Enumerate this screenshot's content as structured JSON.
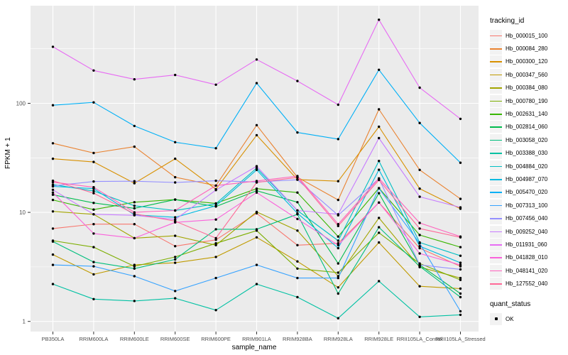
{
  "figure": {
    "background": "#FFFFFF",
    "panel_bg": "#EBEBEB",
    "grid_color": "#FFFFFF",
    "tick_color": "#333333",
    "tick_label_color": "#4D4D4D",
    "point_color": "#000000"
  },
  "axes": {
    "x_title": "sample_name",
    "y_title": "FPKM + 1",
    "y_scale": "log10",
    "y_tick_labels": [
      "1",
      "10",
      "100"
    ]
  },
  "legend": {
    "color_title": "tracking_id",
    "shape_title": "quant_status",
    "shape_items": [
      {
        "label": "OK"
      }
    ]
  },
  "chart_data": {
    "type": "line",
    "title": "",
    "xlabel": "sample_name",
    "ylabel": "FPKM + 1",
    "y_scale": "log10",
    "ylim": [
      1,
      900
    ],
    "y_major_ticks": [
      1,
      10,
      100
    ],
    "y_minor_ticks": [
      3.162,
      31.62,
      316.2
    ],
    "grid": "white-on-grey",
    "legend_position": "right",
    "categories": [
      "PB350LA",
      "RRIM600LA",
      "RRIM600LE",
      "RRIM600SE",
      "RRIM600PE",
      "RRIM901LA",
      "RRIM928BA",
      "RRIM928LA",
      "RRIM928LE",
      "RRII105LA_Control",
      "RRII105LA_Stressed"
    ],
    "series": [
      {
        "name": "Hb_000015_100",
        "color": "#F8766D",
        "values": [
          7.1,
          7.8,
          7.8,
          4.9,
          5.6,
          9.8,
          5.0,
          5.2,
          12.3,
          4.7,
          3.2
        ]
      },
      {
        "name": "Hb_000084_280",
        "color": "#EA8331",
        "values": [
          43,
          35,
          40,
          21,
          17.6,
          63,
          21,
          13,
          88,
          24.5,
          13.3
        ]
      },
      {
        "name": "Hb_000300_120",
        "color": "#D89000",
        "values": [
          31,
          29,
          18.5,
          31,
          16.3,
          51,
          20,
          19.3,
          61,
          16.5,
          10.8
        ]
      },
      {
        "name": "Hb_000347_560",
        "color": "#C09B00",
        "values": [
          4.1,
          2.7,
          3.3,
          3.45,
          3.9,
          5.9,
          3.55,
          2.05,
          5.3,
          2.1,
          2.0
        ]
      },
      {
        "name": "Hb_000384_080",
        "color": "#A3A500",
        "values": [
          10.2,
          9.6,
          5.8,
          6.1,
          5.0,
          10.1,
          6.8,
          2.6,
          8.9,
          3.15,
          2.5
        ]
      },
      {
        "name": "Hb_000780_190",
        "color": "#7CAE00",
        "values": [
          5.5,
          4.8,
          3.2,
          3.9,
          5.2,
          6.8,
          3.05,
          2.8,
          6.5,
          3.4,
          2.4
        ]
      },
      {
        "name": "Hb_002631_140",
        "color": "#39B600",
        "values": [
          13.0,
          10.6,
          12.4,
          13.1,
          12.1,
          16.5,
          15.2,
          6.0,
          16.7,
          6.2,
          4.8
        ]
      },
      {
        "name": "Hb_002814_060",
        "color": "#00BB4E",
        "values": [
          14.5,
          12.2,
          10.9,
          13.1,
          11.3,
          15.8,
          12.4,
          3.4,
          15.0,
          3.3,
          1.8
        ]
      },
      {
        "name": "Hb_003058_020",
        "color": "#00BF7D",
        "values": [
          5.4,
          3.5,
          3.05,
          3.7,
          7.0,
          7.0,
          9.6,
          1.8,
          7.3,
          3.2,
          1.67
        ]
      },
      {
        "name": "Hb_003388_030",
        "color": "#00C1A3",
        "values": [
          2.2,
          1.6,
          1.54,
          1.63,
          1.27,
          2.2,
          1.67,
          1.07,
          2.34,
          1.1,
          1.15
        ]
      },
      {
        "name": "Hb_004884_020",
        "color": "#00BFC4",
        "values": [
          18.0,
          15.7,
          11.5,
          10.4,
          12.0,
          25.5,
          10.4,
          5.5,
          29.6,
          5.3,
          4.0
        ]
      },
      {
        "name": "Hb_004987_070",
        "color": "#00BAE0",
        "values": [
          17.3,
          16.5,
          9.5,
          9.0,
          11.5,
          24.5,
          9.8,
          4.7,
          24.6,
          4.9,
          3.45
        ]
      },
      {
        "name": "Hb_005470_020",
        "color": "#00B0F6",
        "values": [
          96,
          102,
          62,
          44,
          38.7,
          153,
          54,
          47,
          203,
          66,
          28.5
        ]
      },
      {
        "name": "Hb_007313_100",
        "color": "#35A2FF",
        "values": [
          3.3,
          3.2,
          2.6,
          1.9,
          2.5,
          3.3,
          2.5,
          2.5,
          16.6,
          5.2,
          1.24
        ]
      },
      {
        "name": "Hb_007456_040",
        "color": "#9590FF",
        "values": [
          17.5,
          19.2,
          19.3,
          18.8,
          19.5,
          19.0,
          19.9,
          9.4,
          20.4,
          3.3,
          3.0
        ]
      },
      {
        "name": "Hb_009252_040",
        "color": "#C77CFF",
        "values": [
          16.1,
          9.6,
          9.4,
          8.6,
          16.0,
          26.5,
          10.4,
          9.6,
          48,
          13.9,
          11.1
        ]
      },
      {
        "name": "Hb_011931_060",
        "color": "#E76BF3",
        "values": [
          330,
          200,
          166,
          182,
          148,
          252,
          160,
          97,
          584,
          139,
          72
        ]
      },
      {
        "name": "Hb_041828_010",
        "color": "#FA62DB",
        "values": [
          15.2,
          6.4,
          5.8,
          8.1,
          8.6,
          15.2,
          8.7,
          5.0,
          12.3,
          4.2,
          3.3
        ]
      },
      {
        "name": "Hb_048141_020",
        "color": "#FF62BC",
        "values": [
          18.9,
          17.0,
          10.0,
          10.4,
          17.6,
          19.4,
          21.5,
          7.8,
          20.5,
          8.0,
          6.0
        ]
      },
      {
        "name": "Hb_127552_040",
        "color": "#FF6A98",
        "values": [
          19.5,
          15.0,
          9.7,
          8.3,
          5.8,
          18.8,
          20.9,
          7.5,
          19.8,
          7.1,
          5.9
        ]
      }
    ]
  }
}
